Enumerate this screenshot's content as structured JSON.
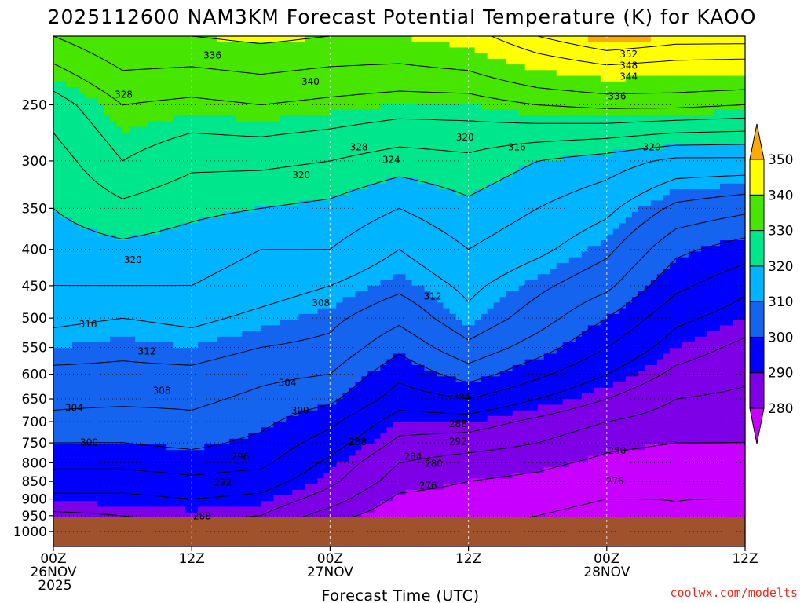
{
  "chart_data": {
    "type": "heatmap",
    "title": "2025112600 NAM3KM Forecast Potential Temperature (K) for KAOO",
    "xlabel": "Forecast Time (UTC)",
    "ylabel": "",
    "credit": "coolwx.com/modelts",
    "x_ticks": [
      {
        "hour": 0,
        "lines": [
          "00Z",
          "26NOV",
          "2025"
        ]
      },
      {
        "hour": 12,
        "lines": [
          "12Z"
        ]
      },
      {
        "hour": 24,
        "lines": [
          "00Z",
          "27NOV"
        ]
      },
      {
        "hour": 36,
        "lines": [
          "12Z"
        ]
      },
      {
        "hour": 48,
        "lines": [
          "00Z",
          "28NOV"
        ]
      },
      {
        "hour": 60,
        "lines": [
          "12Z"
        ]
      }
    ],
    "xlim": [
      0,
      60
    ],
    "y_ticks": [
      250,
      300,
      350,
      400,
      450,
      500,
      550,
      600,
      650,
      700,
      750,
      800,
      850,
      900,
      950,
      1000
    ],
    "ylim": [
      1050,
      200
    ],
    "y_scale": "log",
    "colorbar": {
      "levels": [
        280,
        290,
        300,
        310,
        320,
        330,
        340,
        350
      ],
      "colors": [
        "#c800ff",
        "#7e00e6",
        "#0000ff",
        "#1464f0",
        "#00b4ff",
        "#00e68c",
        "#46e600",
        "#ffff00",
        "#ffaa00"
      ],
      "tick_labels": [
        "280",
        "290",
        "300",
        "310",
        "320",
        "330",
        "340",
        "350"
      ]
    },
    "ground_color": "#a0522d",
    "surface_pressure_hpa": 955,
    "contour_interval_k": 4,
    "theta_profiles": {
      "p_levels": [
        1000,
        950,
        900,
        850,
        800,
        750,
        700,
        650,
        600,
        550,
        500,
        450,
        400,
        350,
        300,
        250,
        200
      ],
      "series": [
        {
          "hour": 0,
          "theta": [
            286,
            287,
            291,
            294,
            297,
            300,
            303,
            305,
            307,
            310,
            313,
            316,
            318,
            320,
            322,
            326,
            336
          ]
        },
        {
          "hour": 6,
          "theta": [
            286,
            288,
            291,
            294,
            297,
            300,
            302,
            305,
            307,
            309,
            312,
            316,
            319,
            323,
            328,
            332,
            340
          ]
        },
        {
          "hour": 12,
          "theta": [
            287,
            289,
            292,
            295,
            298,
            301,
            303,
            305,
            307,
            310,
            313,
            316,
            318,
            321,
            325,
            331,
            340
          ]
        },
        {
          "hour": 18,
          "theta": [
            285,
            288,
            291,
            294,
            297,
            299,
            301,
            303,
            305,
            308,
            311,
            314,
            316,
            320,
            325,
            332,
            341
          ]
        },
        {
          "hour": 24,
          "theta": [
            276,
            282,
            286,
            289,
            291,
            294,
            297,
            301,
            304,
            307,
            309,
            312,
            316,
            319,
            324,
            331,
            340
          ]
        },
        {
          "hour": 30,
          "theta": [
            275,
            277,
            279,
            282,
            284,
            287,
            290,
            294,
            297,
            301,
            305,
            309,
            312,
            316,
            322,
            330,
            340
          ]
        },
        {
          "hour": 36,
          "theta": [
            275,
            277,
            278,
            280,
            282,
            286,
            290,
            296,
            302,
            307,
            311,
            313,
            316,
            319,
            323,
            330,
            342
          ]
        },
        {
          "hour": 42,
          "theta": [
            275,
            276,
            277,
            279,
            281,
            284,
            287,
            292,
            297,
            302,
            306,
            309,
            313,
            316,
            320,
            332,
            348
          ]
        },
        {
          "hour": 48,
          "theta": [
            274,
            275,
            276,
            277,
            279,
            281,
            284,
            288,
            292,
            296,
            300,
            305,
            309,
            313,
            318,
            333,
            352
          ]
        },
        {
          "hour": 54,
          "theta": [
            275,
            276,
            276,
            277,
            278,
            280,
            282,
            284,
            287,
            290,
            293,
            297,
            301,
            307,
            315,
            333,
            350
          ]
        },
        {
          "hour": 60,
          "theta": [
            275,
            275,
            276,
            277,
            278,
            280,
            281,
            283,
            285,
            287,
            290,
            293,
            298,
            305,
            315,
            332,
            350
          ]
        }
      ]
    },
    "contour_labels": [
      {
        "hour": 13.8,
        "p": 213,
        "text": "336"
      },
      {
        "hour": 22.3,
        "p": 232,
        "text": "340"
      },
      {
        "hour": 49.9,
        "p": 212,
        "text": "352"
      },
      {
        "hour": 49.9,
        "p": 220,
        "text": "348"
      },
      {
        "hour": 49.9,
        "p": 228,
        "text": "344"
      },
      {
        "hour": 48.9,
        "p": 243,
        "text": "336"
      },
      {
        "hour": 6.1,
        "p": 242,
        "text": "328"
      },
      {
        "hour": 26.5,
        "p": 287,
        "text": "328"
      },
      {
        "hour": 29.3,
        "p": 299,
        "text": "324"
      },
      {
        "hour": 35.7,
        "p": 278,
        "text": "320"
      },
      {
        "hour": 40.2,
        "p": 287,
        "text": "316"
      },
      {
        "hour": 51.9,
        "p": 287,
        "text": "320"
      },
      {
        "hour": 21.5,
        "p": 314,
        "text": "320"
      },
      {
        "hour": 6.9,
        "p": 414,
        "text": "320"
      },
      {
        "hour": 3.0,
        "p": 510,
        "text": "316"
      },
      {
        "hour": 8.1,
        "p": 557,
        "text": "312"
      },
      {
        "hour": 23.2,
        "p": 476,
        "text": "308"
      },
      {
        "hour": 32.9,
        "p": 466,
        "text": "312"
      },
      {
        "hour": 9.4,
        "p": 633,
        "text": "308"
      },
      {
        "hour": 1.8,
        "p": 669,
        "text": "304"
      },
      {
        "hour": 20.3,
        "p": 617,
        "text": "304"
      },
      {
        "hour": 21.4,
        "p": 675,
        "text": "300"
      },
      {
        "hour": 35.4,
        "p": 647,
        "text": "304"
      },
      {
        "hour": 35.1,
        "p": 705,
        "text": "288"
      },
      {
        "hour": 3.1,
        "p": 749,
        "text": "300"
      },
      {
        "hour": 26.4,
        "p": 748,
        "text": "288"
      },
      {
        "hour": 35.1,
        "p": 747,
        "text": "292"
      },
      {
        "hour": 16.2,
        "p": 784,
        "text": "296"
      },
      {
        "hour": 31.2,
        "p": 784,
        "text": "284"
      },
      {
        "hour": 33.0,
        "p": 802,
        "text": "280"
      },
      {
        "hour": 48.9,
        "p": 769,
        "text": "280"
      },
      {
        "hour": 14.7,
        "p": 853,
        "text": "292"
      },
      {
        "hour": 32.5,
        "p": 862,
        "text": "276"
      },
      {
        "hour": 48.7,
        "p": 850,
        "text": "276"
      },
      {
        "hour": 12.9,
        "p": 952,
        "text": "288"
      }
    ]
  }
}
